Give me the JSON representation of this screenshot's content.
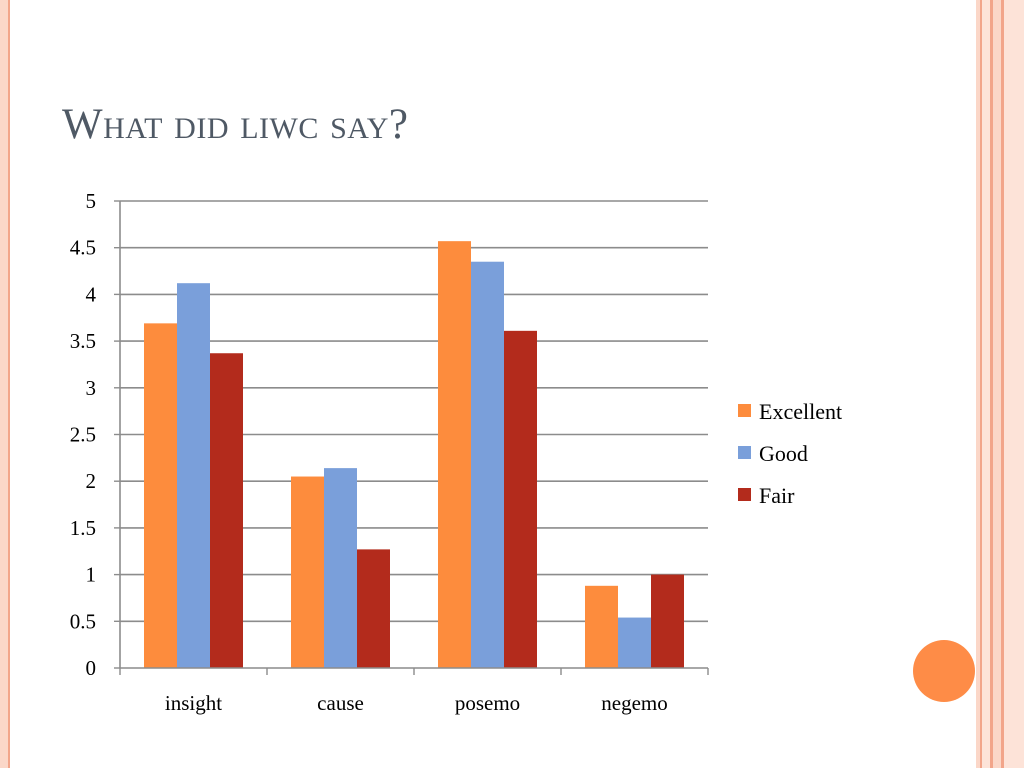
{
  "slide": {
    "title": "What did liwc say?"
  },
  "colors": {
    "title": "#4f5965",
    "accent_dot": "#fe8c47",
    "border_light": "#fbd7c8",
    "border_dark": "#f2a58a"
  },
  "chart_data": {
    "type": "bar",
    "categories": [
      "insight",
      "cause",
      "posemo",
      "negemo"
    ],
    "series": [
      {
        "name": "Excellent",
        "color": "#fd8c3d",
        "values": [
          3.69,
          2.05,
          4.57,
          0.88
        ]
      },
      {
        "name": "Good",
        "color": "#7a9fda",
        "values": [
          4.12,
          2.14,
          4.35,
          0.54
        ]
      },
      {
        "name": "Fair",
        "color": "#b32b1c",
        "values": [
          3.37,
          1.27,
          3.61,
          1.0
        ]
      }
    ],
    "y_ticks": [
      "0",
      "0.5",
      "1",
      "1.5",
      "2",
      "2.5",
      "3",
      "3.5",
      "4",
      "4.5",
      "5"
    ],
    "ylim": [
      0,
      5
    ],
    "grid": true,
    "legend_position": "right",
    "title": "",
    "xlabel": "",
    "ylabel": ""
  }
}
